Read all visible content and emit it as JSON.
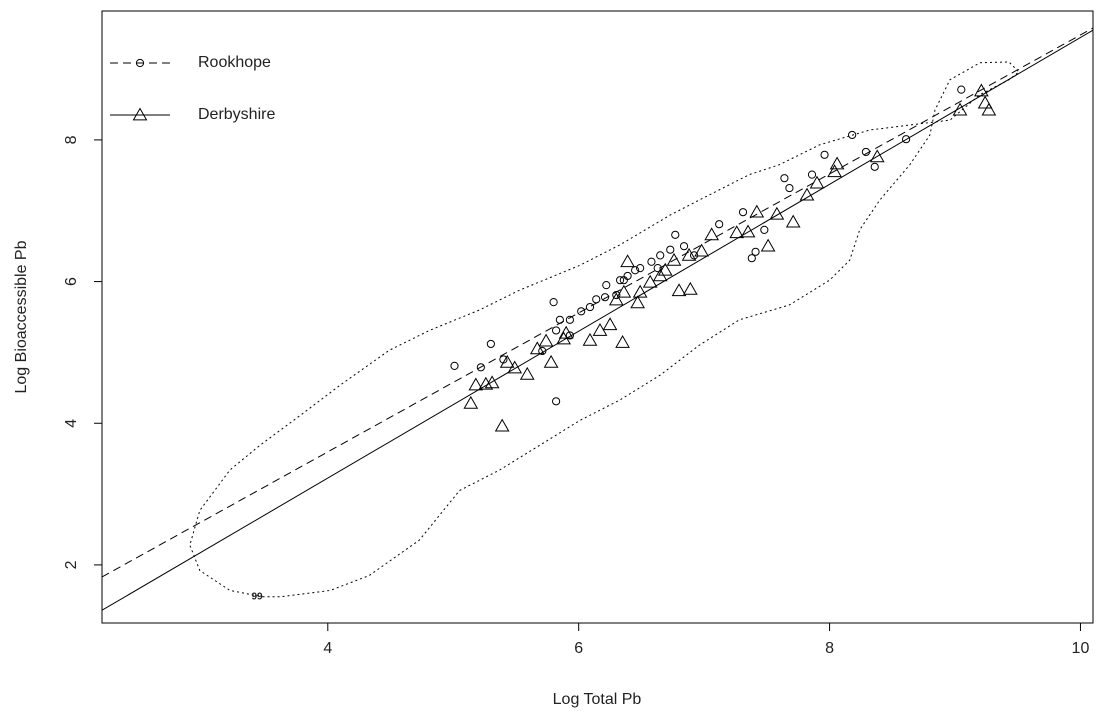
{
  "chart_data": {
    "type": "scatter",
    "x_label": "Log Total Pb",
    "y_label": "Log Bioaccessible Pb",
    "xlim": [
      2.2,
      10.1
    ],
    "ylim": [
      1.18,
      9.82
    ],
    "xticks": [
      4,
      6,
      8,
      10
    ],
    "yticks": [
      2,
      4,
      6,
      8
    ],
    "legend": "top-left",
    "series": [
      {
        "name": "Rookhope",
        "marker": "circle",
        "line_style": "dashed",
        "color": "#000000",
        "x": [
          5.01,
          5.22,
          5.3,
          5.4,
          5.71,
          5.82,
          5.8,
          5.85,
          5.93,
          5.82,
          5.93,
          6.02,
          6.09,
          6.14,
          6.21,
          6.22,
          6.3,
          6.33,
          6.36,
          6.39,
          6.45,
          6.49,
          6.58,
          6.65,
          6.63,
          6.73,
          6.77,
          6.84,
          6.92,
          7.12,
          7.31,
          7.38,
          7.41,
          7.48,
          7.64,
          7.68,
          7.86,
          7.96,
          8.18,
          8.29,
          8.36,
          8.61,
          9.05
        ],
        "values": [
          4.81,
          4.79,
          5.12,
          4.9,
          5.02,
          5.31,
          5.71,
          5.46,
          5.46,
          4.31,
          5.24,
          5.58,
          5.64,
          5.75,
          5.78,
          5.95,
          5.81,
          6.02,
          6.02,
          6.08,
          6.16,
          6.19,
          6.28,
          6.37,
          6.19,
          6.45,
          6.66,
          6.5,
          6.37,
          6.81,
          6.98,
          6.33,
          6.42,
          6.73,
          7.46,
          7.32,
          7.51,
          7.79,
          8.07,
          7.83,
          7.62,
          8.01,
          8.71
        ],
        "fit_x": [
          2.2,
          10.1
        ],
        "fit_values": [
          1.83,
          9.58
        ]
      },
      {
        "name": "Derbyshire",
        "marker": "triangle",
        "line_style": "solid",
        "color": "#000000",
        "x": [
          5.14,
          5.18,
          5.26,
          5.31,
          5.39,
          5.43,
          5.49,
          5.59,
          5.67,
          5.74,
          5.78,
          5.88,
          5.9,
          6.09,
          6.17,
          6.25,
          6.3,
          6.35,
          6.36,
          6.39,
          6.47,
          6.49,
          6.57,
          6.65,
          6.69,
          6.8,
          6.76,
          6.88,
          6.89,
          6.98,
          7.06,
          7.26,
          7.35,
          7.42,
          7.51,
          7.58,
          7.71,
          7.82,
          7.9,
          8.04,
          8.06,
          8.38,
          9.04,
          9.21,
          9.24,
          9.27
        ],
        "values": [
          4.28,
          4.54,
          4.55,
          4.57,
          3.96,
          4.86,
          4.78,
          4.69,
          5.05,
          5.16,
          4.86,
          5.19,
          5.27,
          5.17,
          5.31,
          5.39,
          5.74,
          5.14,
          5.85,
          6.28,
          5.7,
          5.85,
          5.99,
          6.08,
          6.16,
          5.87,
          6.3,
          6.37,
          5.89,
          6.43,
          6.66,
          6.69,
          6.7,
          6.98,
          6.5,
          6.95,
          6.84,
          7.22,
          7.39,
          7.55,
          7.66,
          7.76,
          8.42,
          8.69,
          8.52,
          8.42
        ],
        "fit_x": [
          2.2,
          10.1
        ],
        "fit_values": [
          1.36,
          9.55
        ]
      }
    ],
    "contour": {
      "label": "99",
      "line_style": "dotted",
      "color": "#000000",
      "x": [
        3.48,
        3.62,
        4.02,
        4.33,
        4.73,
        5.05,
        5.37,
        5.69,
        6.01,
        6.33,
        6.65,
        6.96,
        7.28,
        7.68,
        8.0,
        8.16,
        8.24,
        8.4,
        8.64,
        8.8,
        8.84,
        8.96,
        9.2,
        9.43,
        9.51,
        9.43,
        9.2,
        8.96,
        8.64,
        8.32,
        7.92,
        7.6,
        7.36,
        6.96,
        6.73,
        6.33,
        6.01,
        5.53,
        5.21,
        4.81,
        4.49,
        4.1,
        3.78,
        3.46,
        3.22,
        2.98,
        2.9,
        2.98,
        3.22,
        3.48
      ],
      "values": [
        1.55,
        1.55,
        1.64,
        1.85,
        2.35,
        3.05,
        3.34,
        3.69,
        4.04,
        4.33,
        4.68,
        5.1,
        5.46,
        5.67,
        6.02,
        6.3,
        6.73,
        7.15,
        7.65,
        8.07,
        8.42,
        8.85,
        9.09,
        9.1,
        8.96,
        8.85,
        8.64,
        8.28,
        8.21,
        8.14,
        7.93,
        7.65,
        7.51,
        7.15,
        6.94,
        6.52,
        6.23,
        5.88,
        5.6,
        5.31,
        5.03,
        4.54,
        4.11,
        3.69,
        3.34,
        2.77,
        2.28,
        1.92,
        1.64,
        1.55
      ]
    }
  }
}
